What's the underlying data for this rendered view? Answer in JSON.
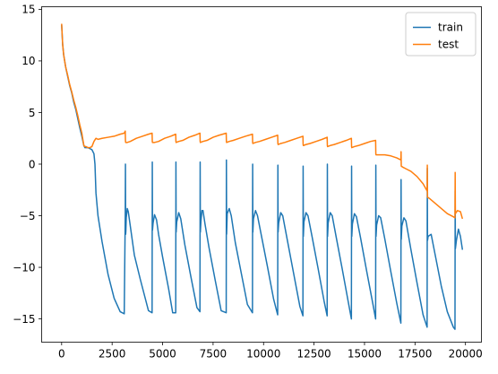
{
  "chart_data": {
    "type": "line",
    "title": "",
    "xlabel": "",
    "ylabel": "",
    "xlim": [
      -990,
      20790
    ],
    "ylim": [
      -17.25,
      15.25
    ],
    "xticks": [
      0,
      2500,
      5000,
      7500,
      10000,
      12500,
      15000,
      17500,
      20000
    ],
    "yticks": [
      -15,
      -10,
      -5,
      0,
      5,
      10,
      15
    ],
    "grid": false,
    "legend_position": "top-right",
    "series": [
      {
        "name": "train",
        "color": "#1f77b4",
        "x": [
          0,
          50,
          100,
          200,
          300,
          400,
          500,
          600,
          700,
          800,
          900,
          1000,
          1100,
          1150,
          1200,
          1300,
          1400,
          1500,
          1600,
          1650,
          1700,
          1800,
          2000,
          2300,
          2600,
          2900,
          3100,
          3150,
          3160,
          3170,
          3180,
          3200,
          3250,
          3300,
          3400,
          3600,
          3900,
          4300,
          4480,
          4490,
          4500,
          4530,
          4600,
          4700,
          4800,
          5000,
          5300,
          5500,
          5650,
          5660,
          5670,
          5700,
          5800,
          5900,
          6100,
          6400,
          6700,
          6850,
          6860,
          6870,
          6900,
          6950,
          7000,
          7100,
          7300,
          7600,
          7900,
          8150,
          8160,
          8170,
          8200,
          8300,
          8400,
          8600,
          8900,
          9200,
          9450,
          9460,
          9470,
          9500,
          9600,
          9700,
          9900,
          10200,
          10500,
          10700,
          10710,
          10720,
          10750,
          10850,
          10950,
          11200,
          11500,
          11800,
          11950,
          11960,
          11970,
          12000,
          12100,
          12200,
          12400,
          12700,
          13000,
          13150,
          13160,
          13170,
          13200,
          13300,
          13400,
          13600,
          13900,
          14200,
          14350,
          14360,
          14370,
          14400,
          14500,
          14600,
          14800,
          15100,
          15400,
          15550,
          15560,
          15570,
          15600,
          15700,
          15800,
          16000,
          16300,
          16600,
          16800,
          16810,
          16820,
          16850,
          16950,
          17050,
          17300,
          17600,
          17900,
          18100,
          18110,
          18120,
          18150,
          18300,
          18500,
          18800,
          19100,
          19400,
          19480,
          19490,
          19500,
          19550,
          19650,
          19750,
          19850
        ],
        "y": [
          13.5,
          11.6,
          10.6,
          9.4,
          8.5,
          7.6,
          6.9,
          6.0,
          5.3,
          4.4,
          3.5,
          2.7,
          1.8,
          1.6,
          1.6,
          1.6,
          1.5,
          1.4,
          1.0,
          0.0,
          -2.8,
          -5.0,
          -7.5,
          -10.7,
          -13.0,
          -14.3,
          -14.5,
          -5.0,
          0.0,
          -6.8,
          -6.5,
          -5.2,
          -4.3,
          -4.6,
          -6.0,
          -8.8,
          -11.2,
          -14.2,
          -14.4,
          0.2,
          -6.4,
          -5.7,
          -4.9,
          -5.4,
          -6.8,
          -9.0,
          -12.1,
          -14.4,
          -14.4,
          0.2,
          -6.6,
          -5.6,
          -4.7,
          -5.3,
          -7.8,
          -10.9,
          -13.9,
          -14.3,
          0.2,
          -6.6,
          -5.5,
          -4.5,
          -4.5,
          -5.8,
          -8.1,
          -11.2,
          -14.2,
          -14.4,
          0.4,
          -6.8,
          -4.8,
          -4.3,
          -5.0,
          -7.6,
          -10.6,
          -13.6,
          -14.4,
          0.0,
          -6.6,
          -5.3,
          -4.5,
          -5.0,
          -7.0,
          -10.0,
          -13.1,
          -14.6,
          -0.1,
          -6.6,
          -5.7,
          -4.7,
          -5.0,
          -7.6,
          -10.7,
          -13.8,
          -14.7,
          -0.2,
          -7.0,
          -5.6,
          -4.7,
          -5.0,
          -7.0,
          -10.1,
          -13.3,
          -14.7,
          0.0,
          -7.0,
          -5.7,
          -4.7,
          -5.0,
          -7.1,
          -10.2,
          -13.4,
          -15.0,
          -0.2,
          -7.0,
          -5.8,
          -4.8,
          -5.1,
          -7.1,
          -10.3,
          -13.4,
          -15.0,
          -0.1,
          -7.0,
          -5.9,
          -5.0,
          -5.2,
          -7.2,
          -10.4,
          -13.5,
          -15.4,
          -1.5,
          -7.3,
          -6.0,
          -5.2,
          -5.5,
          -8.3,
          -11.5,
          -14.6,
          -15.8,
          -0.4,
          -7.4,
          -7.0,
          -6.8,
          -8.8,
          -11.8,
          -14.3,
          -15.8,
          -16.0,
          -2.6,
          -8.2,
          -7.4,
          -6.3,
          -7.0,
          -8.3
        ]
      },
      {
        "name": "test",
        "color": "#ff7f0e",
        "x": [
          0,
          50,
          100,
          200,
          300,
          400,
          500,
          600,
          700,
          800,
          900,
          1000,
          1100,
          1150,
          1200,
          1300,
          1400,
          1500,
          1600,
          1700,
          1800,
          2000,
          2300,
          2600,
          2900,
          3100,
          3150,
          3160,
          3170,
          3250,
          3400,
          3700,
          4000,
          4300,
          4480,
          4490,
          4500,
          4600,
          4800,
          5100,
          5400,
          5650,
          5660,
          5670,
          5800,
          6000,
          6300,
          6600,
          6850,
          6860,
          6870,
          7000,
          7200,
          7500,
          7800,
          8150,
          8160,
          8170,
          8300,
          8500,
          8800,
          9100,
          9450,
          9460,
          9470,
          9600,
          9800,
          10100,
          10400,
          10700,
          10710,
          10720,
          10850,
          11050,
          11350,
          11650,
          11950,
          11960,
          11970,
          12100,
          12300,
          12600,
          12900,
          13150,
          13160,
          13170,
          13300,
          13500,
          13800,
          14100,
          14350,
          14360,
          14370,
          14500,
          14700,
          15000,
          15300,
          15550,
          15560,
          15570,
          15700,
          16000,
          16300,
          16600,
          16800,
          16810,
          16820,
          16900,
          17100,
          17300,
          17600,
          17900,
          18100,
          18110,
          18120,
          18200,
          18500,
          18800,
          19100,
          19400,
          19480,
          19490,
          19500,
          19600,
          19750,
          19850
        ],
        "y": [
          13.6,
          11.6,
          10.6,
          9.4,
          8.6,
          7.7,
          7.0,
          6.2,
          5.5,
          4.7,
          3.8,
          3.0,
          1.8,
          1.7,
          1.7,
          1.6,
          1.6,
          1.7,
          2.2,
          2.5,
          2.4,
          2.5,
          2.6,
          2.7,
          2.9,
          3.0,
          3.2,
          2.3,
          2.1,
          2.1,
          2.2,
          2.5,
          2.7,
          2.9,
          3.0,
          2.2,
          2.1,
          2.1,
          2.2,
          2.5,
          2.7,
          2.9,
          2.2,
          2.1,
          2.2,
          2.3,
          2.6,
          2.8,
          3.0,
          2.2,
          2.1,
          2.2,
          2.3,
          2.6,
          2.8,
          3.0,
          2.2,
          2.1,
          2.2,
          2.3,
          2.5,
          2.7,
          2.9,
          2.1,
          2.0,
          2.1,
          2.2,
          2.4,
          2.6,
          2.8,
          2.0,
          1.9,
          2.0,
          2.1,
          2.3,
          2.5,
          2.7,
          1.9,
          1.8,
          1.9,
          2.0,
          2.2,
          2.4,
          2.6,
          1.8,
          1.7,
          1.8,
          1.9,
          2.1,
          2.3,
          2.5,
          1.7,
          1.6,
          1.7,
          1.8,
          2.0,
          2.2,
          2.3,
          1.0,
          0.9,
          0.9,
          0.9,
          0.8,
          0.6,
          0.4,
          1.2,
          -0.2,
          -0.3,
          -0.5,
          -0.7,
          -1.2,
          -1.9,
          -2.6,
          -0.1,
          -3.2,
          -3.3,
          -3.8,
          -4.3,
          -4.8,
          -5.1,
          -5.2,
          -0.8,
          -4.8,
          -4.5,
          -4.6,
          -5.3
        ]
      }
    ]
  }
}
